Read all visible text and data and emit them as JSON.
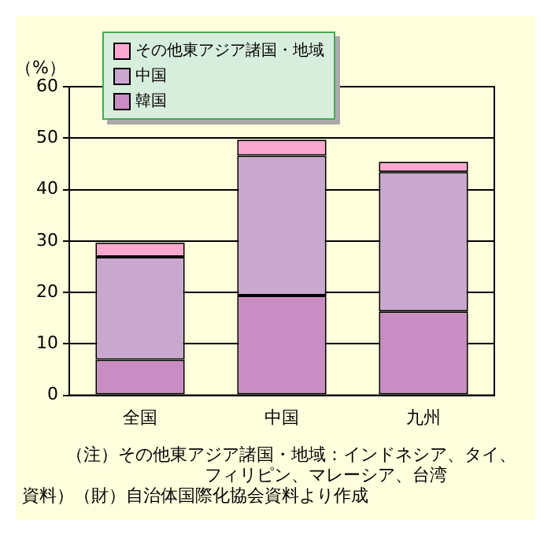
{
  "chart_data": {
    "type": "bar",
    "stacked": true,
    "ylabel": "（%）",
    "categories": [
      "全国",
      "中国",
      "九州"
    ],
    "series": [
      {
        "name": "韓国",
        "color": "#c98dc4",
        "values": [
          6.9,
          19.4,
          16.3
        ]
      },
      {
        "name": "中国",
        "color": "#c9a8d0",
        "values": [
          20.0,
          27.2,
          27.1
        ]
      },
      {
        "name": "その他東アジア諸国・地域",
        "color": "#f9a8d0",
        "values": [
          2.8,
          3.1,
          2.0
        ]
      }
    ],
    "ylim": [
      0,
      60
    ],
    "yticks": [
      0,
      10,
      20,
      30,
      40,
      50,
      60
    ],
    "grid": "y",
    "legend": "top left",
    "annotations": [
      "（注）その他東アジア諸国・地域：インドネシア、タイ、フィリピン、マレーシア、台湾",
      "資料）（財）自治体国際化協会資料より作成"
    ]
  }
}
